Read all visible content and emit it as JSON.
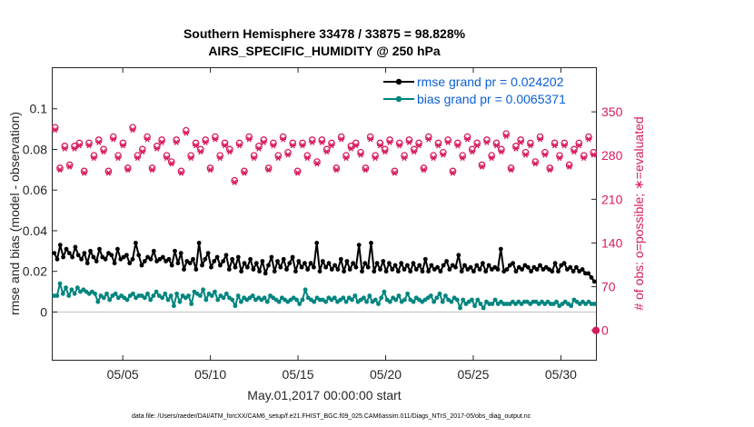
{
  "chart_data": {
    "type": "line",
    "title": "Southern Hemisphere 33478 / 33875 = 98.828%",
    "subtitle": "AIRS_SPECIFIC_HUMIDITY @ 250 hPa",
    "xlabel": "May.01,2017 00:00:00 start",
    "ylabel": "rmse and bias (model - observation)",
    "y2label": "# of obs: o=possible; ∗=evaluated",
    "footnote": "data file: /Users/raeder/DAI/ATM_forcXX/CAM6_setup/f.e21.FHIST_BGC.f09_025.CAM6assim.011/Diags_NTrS_2017-05/obs_diag_output.nc",
    "xlim": [
      1.0,
      32.0
    ],
    "ylim": [
      -0.0235,
      0.12
    ],
    "y2lim": [
      -47,
      420
    ],
    "x_ticks": [
      {
        "value": 5,
        "label": "05/05"
      },
      {
        "value": 10,
        "label": "05/10"
      },
      {
        "value": 15,
        "label": "05/15"
      },
      {
        "value": 20,
        "label": "05/20"
      },
      {
        "value": 25,
        "label": "05/25"
      },
      {
        "value": 30,
        "label": "05/30"
      }
    ],
    "y_ticks": [
      {
        "value": 0,
        "label": "0"
      },
      {
        "value": 0.02,
        "label": "0.02"
      },
      {
        "value": 0.04,
        "label": "0.04"
      },
      {
        "value": 0.06,
        "label": "0.06"
      },
      {
        "value": 0.08,
        "label": "0.08"
      },
      {
        "value": 0.1,
        "label": "0.1"
      }
    ],
    "y2_ticks": [
      {
        "value": 0,
        "label": "0"
      },
      {
        "value": 70,
        "label": "70"
      },
      {
        "value": 140,
        "label": "140"
      },
      {
        "value": 210,
        "label": "210"
      },
      {
        "value": 280,
        "label": "280"
      },
      {
        "value": 350,
        "label": "350"
      }
    ],
    "legend": [
      {
        "label": "rmse grand pr = 0.024202",
        "color": "#000000"
      },
      {
        "label": "bias grand pr = 0.0065371",
        "color": "#00857f"
      }
    ],
    "colors": {
      "rmse": "#000000",
      "bias": "#00857f",
      "obs": "#d81b60",
      "zero_line": "#c8c8c8"
    },
    "series": [
      {
        "name": "rmse",
        "values": [
          0.029,
          0.026,
          0.033,
          0.027,
          0.031,
          0.029,
          0.027,
          0.032,
          0.028,
          0.026,
          0.029,
          0.024,
          0.03,
          0.027,
          0.025,
          0.031,
          0.027,
          0.026,
          0.029,
          0.028,
          0.024,
          0.031,
          0.026,
          0.027,
          0.028,
          0.024,
          0.026,
          0.034,
          0.028,
          0.023,
          0.025,
          0.027,
          0.026,
          0.03,
          0.025,
          0.026,
          0.027,
          0.025,
          0.026,
          0.023,
          0.03,
          0.024,
          0.029,
          0.021,
          0.025,
          0.024,
          0.026,
          0.021,
          0.034,
          0.023,
          0.026,
          0.029,
          0.022,
          0.025,
          0.027,
          0.023,
          0.025,
          0.028,
          0.021,
          0.026,
          0.022,
          0.027,
          0.02,
          0.024,
          0.022,
          0.026,
          0.021,
          0.024,
          0.02,
          0.025,
          0.019,
          0.023,
          0.027,
          0.02,
          0.025,
          0.022,
          0.026,
          0.021,
          0.024,
          0.027,
          0.02,
          0.025,
          0.022,
          0.024,
          0.021,
          0.024,
          0.022,
          0.034,
          0.02,
          0.025,
          0.022,
          0.024,
          0.021,
          0.023,
          0.021,
          0.026,
          0.02,
          0.025,
          0.021,
          0.024,
          0.022,
          0.033,
          0.02,
          0.024,
          0.022,
          0.034,
          0.02,
          0.024,
          0.021,
          0.025,
          0.02,
          0.024,
          0.021,
          0.023,
          0.02,
          0.024,
          0.021,
          0.023,
          0.02,
          0.024,
          0.021,
          0.023,
          0.02,
          0.026,
          0.02,
          0.023,
          0.021,
          0.022,
          0.02,
          0.023,
          0.025,
          0.021,
          0.023,
          0.022,
          0.028,
          0.02,
          0.023,
          0.021,
          0.022,
          0.02,
          0.023,
          0.021,
          0.024,
          0.02,
          0.023,
          0.021,
          0.022,
          0.021,
          0.031,
          0.02,
          0.021,
          0.023,
          0.024,
          0.02,
          0.022,
          0.021,
          0.023,
          0.022,
          0.02,
          0.022,
          0.021,
          0.023,
          0.021,
          0.022,
          0.021,
          0.02,
          0.024,
          0.02,
          0.023,
          0.024,
          0.021,
          0.022,
          0.02,
          0.022,
          0.02,
          0.021,
          0.019,
          0.019,
          0.017,
          0.015
        ]
      },
      {
        "name": "bias",
        "values": [
          0.008,
          0.008,
          0.014,
          0.009,
          0.012,
          0.008,
          0.011,
          0.009,
          0.012,
          0.01,
          0.011,
          0.01,
          0.009,
          0.01,
          0.009,
          0.005,
          0.008,
          0.007,
          0.009,
          0.006,
          0.008,
          0.009,
          0.007,
          0.008,
          0.007,
          0.006,
          0.008,
          0.009,
          0.007,
          0.008,
          0.008,
          0.007,
          0.009,
          0.006,
          0.008,
          0.01,
          0.008,
          0.007,
          0.009,
          0.006,
          0.008,
          0.003,
          0.009,
          0.005,
          0.008,
          0.007,
          0.008,
          0.004,
          0.01,
          0.009,
          0.008,
          0.011,
          0.006,
          0.009,
          0.008,
          0.01,
          0.006,
          0.008,
          0.007,
          0.009,
          0.007,
          0.006,
          0.003,
          0.008,
          0.005,
          0.007,
          0.006,
          0.007,
          0.008,
          0.006,
          0.007,
          0.006,
          0.007,
          0.005,
          0.008,
          0.007,
          0.006,
          0.005,
          0.007,
          0.006,
          0.005,
          0.006,
          0.007,
          0.006,
          0.004,
          0.006,
          0.011,
          0.007,
          0.006,
          0.005,
          0.007,
          0.006,
          0.006,
          0.005,
          0.007,
          0.006,
          0.007,
          0.005,
          0.006,
          0.007,
          0.005,
          0.007,
          0.006,
          0.008,
          0.005,
          0.006,
          0.007,
          0.005,
          0.008,
          0.005,
          0.006,
          0.004,
          0.007,
          0.01,
          0.006,
          0.005,
          0.007,
          0.006,
          0.008,
          0.005,
          0.006,
          0.009,
          0.006,
          0.005,
          0.007,
          0.006,
          0.005,
          0.006,
          0.007,
          0.008,
          0.005,
          0.007,
          0.009,
          0.005,
          0.008,
          0.006,
          0.005,
          0.007,
          0.006,
          0.002,
          0.006,
          0.004,
          0.005,
          0.006,
          0.003,
          0.006,
          0.004,
          0.002,
          0.005,
          0.004,
          0.004,
          0.006,
          0.004,
          0.005,
          0.004,
          0.004,
          0.004,
          0.005,
          0.004,
          0.005,
          0.004,
          0.005,
          0.005,
          0.004,
          0.005,
          0.005,
          0.004,
          0.005,
          0.004,
          0.005,
          0.004,
          0.004,
          0.005,
          0.003,
          0.004,
          0.005,
          0.004,
          0.003,
          0.006,
          0.005,
          0.004,
          0.005,
          0.004,
          0.005,
          0.004,
          0.004
        ]
      },
      {
        "name": "obs_possible",
        "values": [
          325,
          260,
          295,
          265,
          295,
          300,
          255,
          300,
          280,
          305,
          290,
          255,
          310,
          280,
          300,
          260,
          325,
          280,
          290,
          310,
          260,
          295,
          305,
          280,
          270,
          305,
          255,
          320,
          280,
          300,
          290,
          305,
          260,
          310,
          280,
          300,
          290,
          240,
          300,
          255,
          310,
          280,
          295,
          305,
          260,
          300,
          280,
          310,
          285,
          300,
          255,
          300,
          280,
          305,
          270,
          305,
          290,
          300,
          260,
          310,
          280,
          295,
          300,
          285,
          260,
          310,
          280,
          300,
          290,
          305,
          255,
          300,
          280,
          305,
          290,
          300,
          260,
          310,
          280,
          300,
          285,
          305,
          255,
          300,
          280,
          310,
          290,
          300,
          265,
          305,
          280,
          300,
          290,
          315,
          260,
          295,
          305,
          285,
          300,
          270,
          310,
          285,
          260,
          300,
          280,
          300,
          265,
          290,
          300,
          280,
          310,
          285
        ]
      },
      {
        "name": "obs_evaluated",
        "values": [
          321,
          257,
          291,
          262,
          291,
          296,
          252,
          296,
          276,
          301,
          286,
          252,
          306,
          276,
          296,
          257,
          321,
          276,
          286,
          306,
          257,
          291,
          301,
          276,
          267,
          301,
          252,
          316,
          276,
          296,
          286,
          301,
          257,
          306,
          276,
          296,
          286,
          237,
          296,
          252,
          306,
          276,
          291,
          301,
          257,
          296,
          276,
          306,
          281,
          296,
          252,
          296,
          276,
          301,
          267,
          301,
          286,
          296,
          257,
          306,
          276,
          291,
          296,
          281,
          257,
          306,
          276,
          296,
          286,
          301,
          252,
          296,
          276,
          301,
          286,
          296,
          257,
          306,
          276,
          296,
          281,
          301,
          252,
          296,
          276,
          306,
          286,
          296,
          262,
          301,
          276,
          296,
          286,
          311,
          257,
          291,
          301,
          281,
          296,
          267,
          306,
          281,
          257,
          296,
          276,
          296,
          262,
          286,
          296,
          276,
          306,
          281
        ]
      }
    ],
    "obs_end_marker": {
      "x": 32.0,
      "value": 0
    }
  }
}
